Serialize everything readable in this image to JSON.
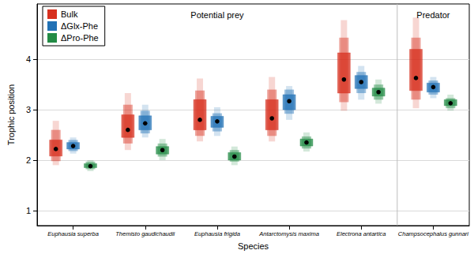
{
  "chart_data": {
    "type": "interval",
    "x_label": "Species",
    "y_label": "Trophic position",
    "categories": [
      "Euphausia superba",
      "Themisto gaudichaudii",
      "Euphausia frigida",
      "Antarctomysis maxima",
      "Electrona antartica",
      "Champsocephalus gunnari"
    ],
    "groups": [
      {
        "label": "Potential prey",
        "from": "Euphausia superba",
        "to": "Electrona antartica"
      },
      {
        "label": "Predator",
        "from": "Champsocephalus gunnari",
        "to": "Champsocephalus gunnari"
      }
    ],
    "ylim": [
      0.7,
      5.1
    ],
    "yticks": [
      1,
      2,
      3,
      4
    ],
    "grid": true,
    "legend": "top-left",
    "series": [
      {
        "name": "Bulk",
        "color": "#d7301f",
        "median": [
          2.22,
          2.6,
          2.8,
          2.83,
          3.6,
          3.63
        ],
        "intervals": [
          [
            [
              1.9,
              2.78
            ],
            [
              1.98,
              2.6
            ],
            [
              2.08,
              2.4
            ]
          ],
          [
            [
              2.2,
              3.33
            ],
            [
              2.33,
              3.1
            ],
            [
              2.45,
              2.9
            ]
          ],
          [
            [
              2.37,
              3.62
            ],
            [
              2.48,
              3.38
            ],
            [
              2.6,
              3.2
            ]
          ],
          [
            [
              2.37,
              3.65
            ],
            [
              2.48,
              3.4
            ],
            [
              2.6,
              3.2
            ]
          ],
          [
            [
              2.98,
              4.78
            ],
            [
              3.15,
              4.43
            ],
            [
              3.33,
              4.13
            ]
          ],
          [
            [
              3.03,
              4.83
            ],
            [
              3.2,
              4.43
            ],
            [
              3.38,
              4.2
            ]
          ]
        ]
      },
      {
        "name": "ΔGlx-Phe",
        "color": "#2171b5",
        "median": [
          2.28,
          2.73,
          2.77,
          3.17,
          3.55,
          3.45
        ],
        "intervals": [
          [
            [
              2.13,
              2.45
            ],
            [
              2.18,
              2.4
            ],
            [
              2.22,
              2.35
            ]
          ],
          [
            [
              2.45,
              3.1
            ],
            [
              2.53,
              2.98
            ],
            [
              2.6,
              2.88
            ]
          ],
          [
            [
              2.48,
              3.05
            ],
            [
              2.57,
              2.93
            ],
            [
              2.65,
              2.87
            ]
          ],
          [
            [
              2.8,
              3.47
            ],
            [
              2.92,
              3.4
            ],
            [
              3.0,
              3.3
            ]
          ],
          [
            [
              3.2,
              3.87
            ],
            [
              3.33,
              3.75
            ],
            [
              3.42,
              3.68
            ]
          ],
          [
            [
              3.23,
              3.65
            ],
            [
              3.3,
              3.58
            ],
            [
              3.35,
              3.53
            ]
          ]
        ]
      },
      {
        "name": "ΔPro-Phe",
        "color": "#238b45",
        "median": [
          1.88,
          2.2,
          2.07,
          2.35,
          3.35,
          3.13
        ],
        "intervals": [
          [
            [
              1.78,
              2.0
            ],
            [
              1.82,
              1.97
            ],
            [
              1.85,
              1.93
            ]
          ],
          [
            [
              2.0,
              2.42
            ],
            [
              2.07,
              2.33
            ],
            [
              2.12,
              2.27
            ]
          ],
          [
            [
              1.9,
              2.27
            ],
            [
              1.97,
              2.2
            ],
            [
              2.0,
              2.15
            ]
          ],
          [
            [
              2.17,
              2.55
            ],
            [
              2.23,
              2.47
            ],
            [
              2.28,
              2.42
            ]
          ],
          [
            [
              3.12,
              3.6
            ],
            [
              3.2,
              3.5
            ],
            [
              3.27,
              3.43
            ]
          ],
          [
            [
              2.98,
              3.3
            ],
            [
              3.03,
              3.23
            ],
            [
              3.08,
              3.2
            ]
          ]
        ]
      }
    ]
  }
}
